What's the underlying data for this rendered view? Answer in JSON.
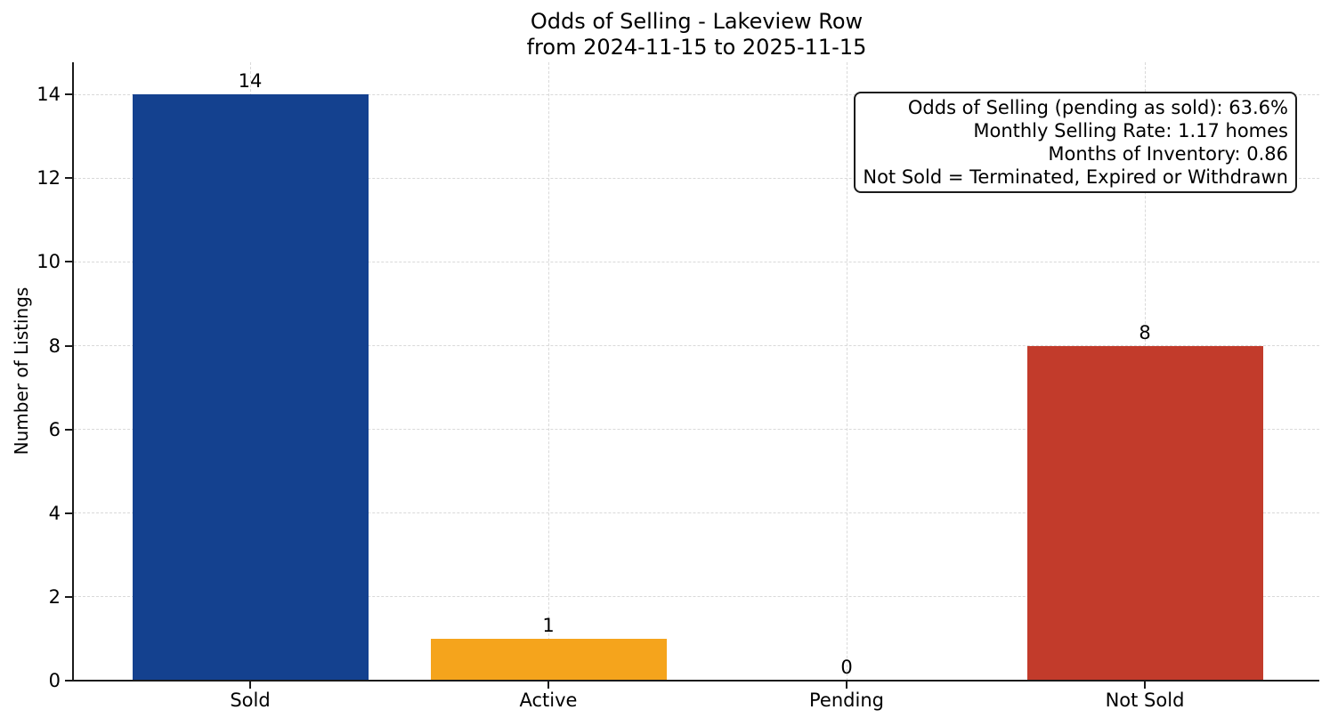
{
  "chart_data": {
    "type": "bar",
    "title": "Odds of Selling - Lakeview Row",
    "subtitle": "from 2024-11-15 to 2025-11-15",
    "xlabel": "",
    "ylabel": "Number of Listings",
    "categories": [
      "Sold",
      "Active",
      "Pending",
      "Not Sold"
    ],
    "values": [
      14,
      1,
      0,
      8
    ],
    "bar_colors": [
      "#14418F",
      "#F5A41C",
      null,
      "#C23B2B"
    ],
    "value_labels": [
      "14",
      "1",
      "0",
      "8"
    ],
    "yticks": [
      0,
      2,
      4,
      6,
      8,
      10,
      12,
      14
    ],
    "ylim": [
      0,
      14.77
    ],
    "grid": true,
    "legend": "none",
    "annotation": {
      "position": "top-right",
      "lines": [
        "Odds of Selling (pending as sold): 63.6%",
        "Monthly Selling Rate: 1.17 homes",
        "Months of Inventory: 0.86",
        "Not Sold = Terminated, Expired or Withdrawn"
      ]
    },
    "colors": {
      "axis": "#1a1a1a",
      "grid": "#d9d9d9",
      "text": "#000000",
      "background": "#ffffff"
    }
  }
}
